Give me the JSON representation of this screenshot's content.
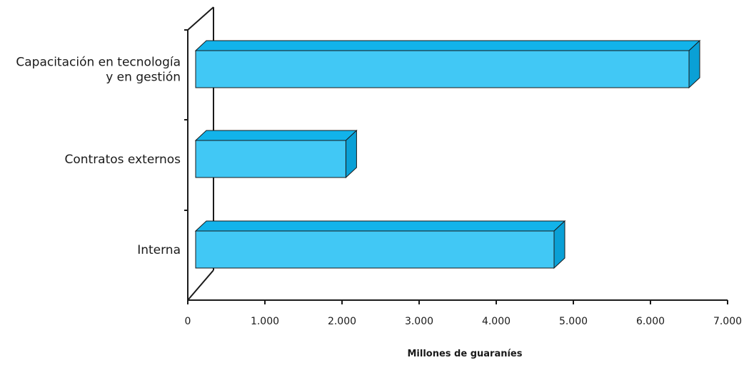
{
  "chart_data": {
    "type": "bar",
    "orientation": "horizontal",
    "three_d": true,
    "categories": [
      [
        "Capacitación en tecnología",
        "y en gestión"
      ],
      [
        "Contratos externos"
      ],
      [
        "Interna"
      ]
    ],
    "values": [
      6500,
      2050,
      4750
    ],
    "xticks": [
      "0",
      "1.000",
      "2.000",
      "3.000",
      "4.000",
      "5.000",
      "6.000",
      "7.000"
    ],
    "xlim": [
      0,
      7000
    ],
    "xlabel": "Millones de guaraníes",
    "ylabel": "",
    "title": "",
    "grid": false,
    "colors": {
      "bar_front": "#41c8f5",
      "bar_top": "#12b3ea",
      "bar_side": "#0aa0d6",
      "axis": "#1a1a1a"
    }
  }
}
